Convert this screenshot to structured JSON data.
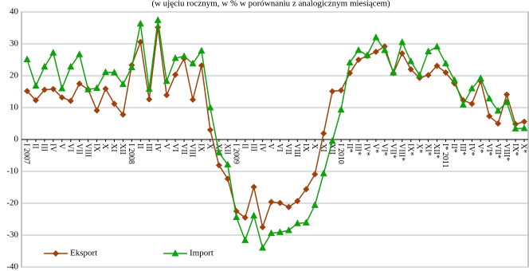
{
  "chart_data": {
    "type": "line",
    "subtitle": "(w ujęciu rocznym, w % w porównaniu z analogicznym miesiącem)",
    "categories": [
      "I 2007",
      "II",
      "III",
      "IV",
      "V",
      "VI",
      "VII",
      "VIII",
      "IX",
      "X",
      "XI",
      "XII",
      "I 2008",
      "II",
      "III",
      "IV",
      "V",
      "VI",
      "VII",
      "VIII",
      "IX",
      "X",
      "XI",
      "XII",
      "I 2009",
      "II",
      "III",
      "IV",
      "V",
      "VI",
      "VII",
      "VIII",
      "IX",
      "X",
      "XI",
      "XII",
      "I 2010",
      "II*",
      "III*",
      "IV*",
      "V*",
      "VI*",
      "VII*",
      "VIII*",
      "IX*",
      "X*",
      "XI*",
      "XII*",
      "I* 2011",
      "II*",
      "III*",
      "IV*",
      "V*",
      "VI*",
      "VII*",
      "VIII*",
      "IX*",
      "X*"
    ],
    "series": [
      {
        "name": "Eksport",
        "color": "#a0400a",
        "marker": "diamond",
        "values": [
          15.2,
          12.3,
          15.6,
          15.8,
          13.2,
          12.1,
          17.5,
          15.7,
          9.1,
          15.9,
          11.2,
          7.8,
          23.3,
          30.6,
          12.6,
          35.2,
          13.9,
          20.3,
          25.4,
          12.5,
          23.2,
          3.0,
          -8.1,
          -12.3,
          -22.5,
          -24.5,
          -14.9,
          -27.5,
          -19.6,
          -19.9,
          -21.2,
          -19.3,
          -15.6,
          -10.9,
          1.9,
          15.1,
          15.4,
          20.8,
          25.0,
          26.2,
          27.5,
          29.2,
          20.8,
          27.0,
          22.0,
          19.3,
          20.2,
          23.1,
          21.0,
          17.6,
          12.3,
          11.2,
          18.3,
          7.3,
          5.0,
          14.1,
          4.8,
          5.6
        ]
      },
      {
        "name": "Import",
        "color": "#10a010",
        "marker": "triangle",
        "values": [
          25.1,
          16.8,
          22.8,
          27.2,
          16.0,
          22.8,
          26.7,
          15.7,
          16.1,
          21.1,
          21.0,
          17.3,
          22.6,
          36.3,
          15.8,
          37.4,
          18.3,
          25.5,
          26.1,
          23.8,
          27.8,
          10.0,
          -4.1,
          -7.9,
          -24.4,
          -31.6,
          -23.9,
          -34.0,
          -29.4,
          -29.1,
          -28.5,
          -26.3,
          -26.1,
          -20.6,
          -10.7,
          -0.5,
          9.3,
          24.1,
          28.0,
          26.4,
          32.0,
          28.0,
          21.0,
          30.5,
          24.5,
          20.2,
          27.6,
          29.1,
          23.8,
          18.6,
          10.9,
          16.0,
          19.2,
          12.8,
          9.0,
          11.7,
          3.4,
          3.5
        ]
      }
    ],
    "ylim": [
      -40,
      40
    ],
    "yticks": [
      -40,
      -30,
      -20,
      -10,
      0,
      10,
      20,
      30,
      40
    ],
    "grid": true
  }
}
